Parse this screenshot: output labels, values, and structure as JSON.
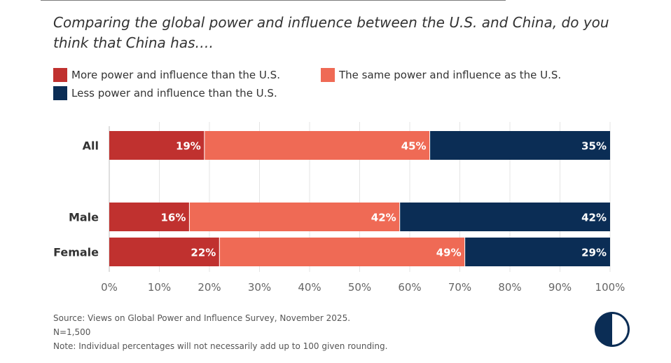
{
  "title": "Comparing the global power and influence between the U.S. and China, do you think that China has….",
  "chart_data": {
    "type": "bar",
    "orientation": "horizontal",
    "stacked": true,
    "categories": [
      "All",
      "Male",
      "Female"
    ],
    "series": [
      {
        "name": "More power and influence than the U.S.",
        "color": "#c0312f",
        "values": [
          19,
          16,
          22
        ]
      },
      {
        "name": "The same power and influence as the U.S.",
        "color": "#ef6a55",
        "values": [
          45,
          42,
          49
        ]
      },
      {
        "name": "Less power and influence than the U.S.",
        "color": "#0b2d55",
        "values": [
          35,
          42,
          29
        ]
      }
    ],
    "labels": [
      [
        "19%",
        "45%",
        "35%"
      ],
      [
        "16%",
        "42%",
        "42%"
      ],
      [
        "22%",
        "49%",
        "29%"
      ]
    ],
    "xlim": [
      0,
      100
    ],
    "xticks": [
      "0%",
      "10%",
      "20%",
      "30%",
      "40%",
      "50%",
      "60%",
      "70%",
      "80%",
      "90%",
      "100%"
    ],
    "grid": true,
    "legend": "top-left"
  },
  "source": "Source: Views on Global Power and Influence Survey, November 2025.",
  "n": "N=1,500",
  "note": "Note: Individual percentages will not necessarily add up to 100 given rounding.",
  "logo_icon": "half-circle-logo-icon"
}
